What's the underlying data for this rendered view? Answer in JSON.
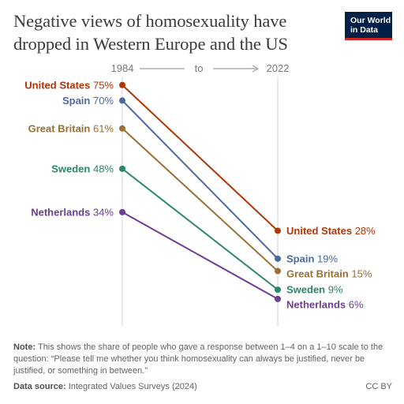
{
  "header": {
    "title": "Negative views of homosexuality have dropped in Western Europe and the US",
    "logo_line1": "Our World",
    "logo_line2": "in Data"
  },
  "chart_data": {
    "type": "slope",
    "x_start_label": "1984",
    "x_connector": "to",
    "x_end_label": "2022",
    "ylim": [
      0,
      100
    ],
    "series": [
      {
        "name": "United States",
        "color": "#b13507",
        "start": 75,
        "end": 28,
        "start_label": "75%",
        "end_label": "28%"
      },
      {
        "name": "Spain",
        "color": "#4c6a9c",
        "start": 70,
        "end": 19,
        "start_label": "70%",
        "end_label": "19%"
      },
      {
        "name": "Great Britain",
        "color": "#9a7034",
        "start": 61,
        "end": 15,
        "start_label": "61%",
        "end_label": "15%"
      },
      {
        "name": "Sweden",
        "color": "#2a8769",
        "start": 48,
        "end": 9,
        "start_label": "48%",
        "end_label": "9%"
      },
      {
        "name": "Netherlands",
        "color": "#6d3e91",
        "start": 34,
        "end": 6,
        "start_label": "34%",
        "end_label": "6%"
      }
    ]
  },
  "footer": {
    "note_label": "Note:",
    "note_text": "This shows the share of people who gave a response between 1–4 on a 1–10 scale to the question: “Please tell me whether you think homosexuality can always be justified, never be justified, or something in between.”",
    "source_label": "Data source:",
    "source_text": "Integrated Values Surveys (2024)",
    "license": "CC BY"
  }
}
